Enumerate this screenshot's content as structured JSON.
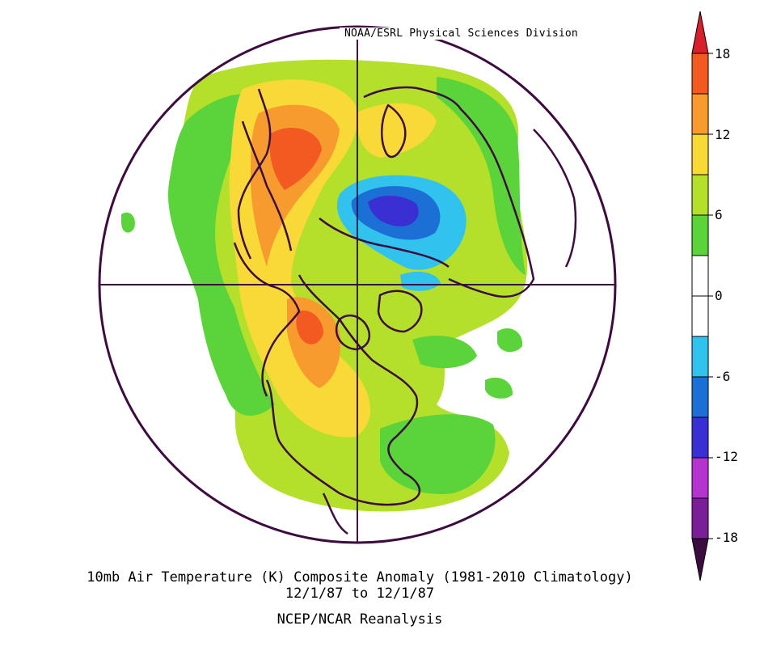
{
  "header": {
    "credit": "NOAA/ESRL Physical Sciences Division"
  },
  "caption": {
    "title": "10mb Air Temperature (K) Composite Anomaly (1981-2010 Climatology)",
    "dates": "12/1/87  to 12/1/87",
    "source": "NCEP/NCAR Reanalysis"
  },
  "legend": {
    "tick_labels": [
      "18",
      "12",
      "6",
      "0",
      "-6",
      "-12",
      "-18"
    ],
    "colors": {
      "top_arrow": "#d81f2b",
      "bands": [
        "#f25a22",
        "#f79b2e",
        "#f8d938",
        "#b4e02b",
        "#5bd33a",
        "#ffffff",
        "#ffffff",
        "#31c3ee",
        "#1c6fd4",
        "#3a2fd3",
        "#b534cf",
        "#7a1f97"
      ],
      "bottom_arrow": "#3d0c3f"
    }
  },
  "map": {
    "projection": "north polar stereographic",
    "boundary_color": "#3d0c3f",
    "colors": {
      "light_green": "#b4e02b",
      "green": "#5bd33a",
      "yellow": "#f8d938",
      "orange": "#f79b2e",
      "red_orange": "#f25a22",
      "light_blue": "#31c3ee",
      "blue": "#1c6fd4",
      "indigo": "#3a2fd3"
    }
  }
}
